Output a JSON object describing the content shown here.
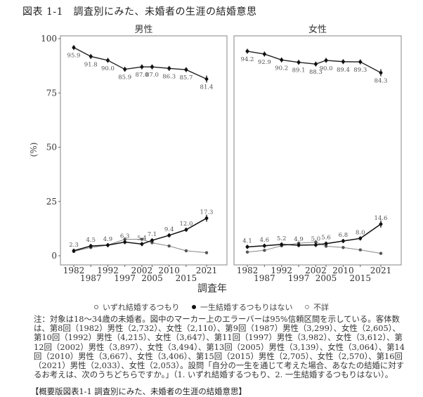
{
  "figure": {
    "title": "図表 1-1　調査別にみた、未婚者の生涯の結婚意思",
    "ylabel": "(%)",
    "xlabel": "調査年"
  },
  "legend": {
    "items": [
      {
        "label": "いずれ結婚するつもり",
        "color": "#ffffff",
        "border": "#666666"
      },
      {
        "label": "一生結婚するつもりはない",
        "color": "#111111",
        "border": "#111111"
      },
      {
        "label": "不詳",
        "color": "#ffffff",
        "border": "#888888"
      }
    ]
  },
  "note": {
    "text": "注：対象は18～34歳の未婚者。図中のマーカー上のエラーバーは95%信頼区間を示している。客体数は、第8回（1982）男性（2,732）、女性（2,110）、第9回（1987）男性（3,299）、女性（2,605）、第10回（1992）男性（4,215）、女性（3,647）、第11回（1997）男性（3,982）、女性（3,612）、第12回（2002）男性（3,897）、女性（3,494）、第13回（2005）男性（3,139）、女性（3,064）、第14回（2010）男性（3,667）、女性（3,406）、第15回（2015）男性（2,705）、女性（2,570）、第16回（2021）男性（2,033）、女性（2,053）。設問「自分の一生を通じて考えた場合、あなたの結婚に対するお考えは、次のうちどちらですか。」（1. いずれ結婚するつもり、2. 一生結婚するつもりはない）。"
  },
  "summary_caption": "【概要版図表1-1 調査別にみた、未婚者の生涯の結婚意思】",
  "chart_data": [
    {
      "type": "line",
      "title": "男性",
      "xlabel": "調査年",
      "ylabel": "(%)",
      "ylim": [
        0,
        100
      ],
      "yticks": [
        0,
        25,
        50,
        75,
        100
      ],
      "grid": false,
      "legend_position": "bottom",
      "x": [
        1982,
        1987,
        1992,
        1997,
        2002,
        2005,
        2010,
        2015,
        2021
      ],
      "series": [
        {
          "name": "いずれ結婚するつもり",
          "values": [
            95.9,
            91.8,
            90.0,
            85.9,
            87.0,
            87.0,
            86.3,
            85.7,
            81.4
          ],
          "labeled": true,
          "error_bars": true
        },
        {
          "name": "一生結婚するつもりはない",
          "values": [
            2.3,
            4.5,
            4.9,
            6.3,
            5.4,
            7.1,
            9.4,
            12.0,
            17.3
          ],
          "labeled": true,
          "error_bars": true
        },
        {
          "name": "不詳",
          "values": [
            2.0,
            3.8,
            4.9,
            7.6,
            7.6,
            6.0,
            4.5,
            2.3,
            1.4
          ],
          "labeled": false,
          "error_bars": false
        }
      ]
    },
    {
      "type": "line",
      "title": "女性",
      "xlabel": "調査年",
      "ylabel": "(%)",
      "ylim": [
        0,
        100
      ],
      "yticks": [
        0,
        25,
        50,
        75,
        100
      ],
      "grid": false,
      "legend_position": "bottom",
      "x": [
        1982,
        1987,
        1992,
        1997,
        2002,
        2005,
        2010,
        2015,
        2021
      ],
      "series": [
        {
          "name": "いずれ結婚するつもり",
          "values": [
            94.2,
            92.9,
            90.2,
            89.1,
            88.3,
            90.0,
            89.4,
            89.3,
            84.3
          ],
          "labeled": true,
          "error_bars": true
        },
        {
          "name": "一生結婚するつもりはない",
          "values": [
            4.1,
            4.6,
            5.2,
            4.9,
            5.0,
            5.6,
            6.8,
            8.0,
            14.6
          ],
          "labeled": true,
          "error_bars": true
        },
        {
          "name": "不詳",
          "values": [
            1.7,
            2.5,
            4.6,
            5.8,
            6.3,
            4.4,
            3.8,
            2.7,
            1.1
          ],
          "labeled": false,
          "error_bars": false
        }
      ]
    }
  ]
}
